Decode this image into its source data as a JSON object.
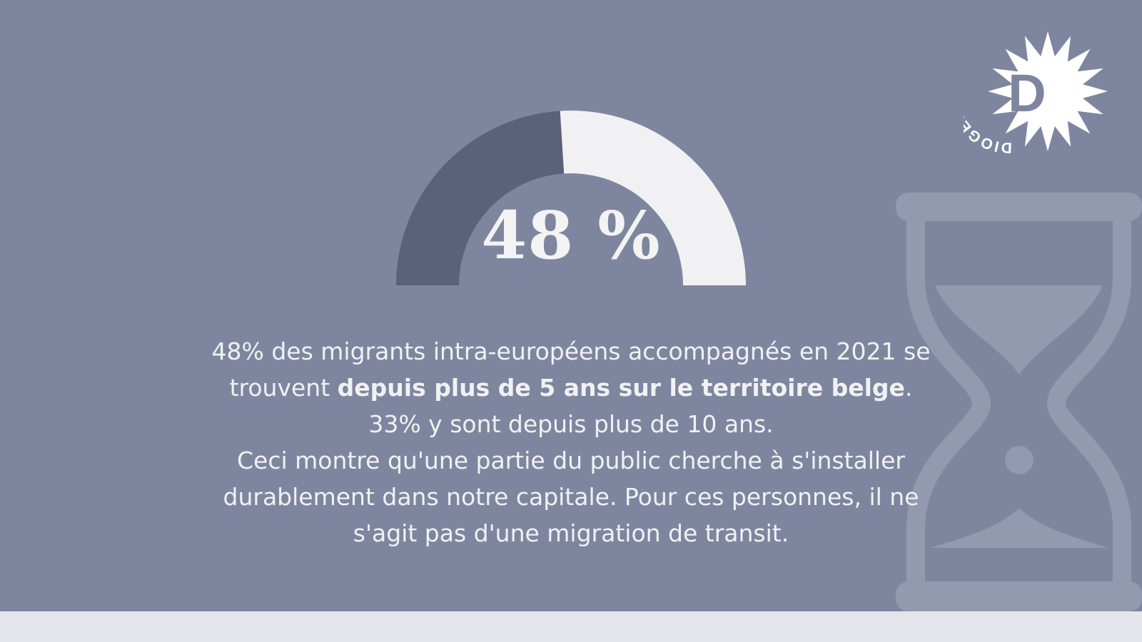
{
  "brand": {
    "logo_text": "DIOGENES",
    "logo_letter": "D"
  },
  "chart_data": {
    "type": "gauge",
    "value": 48,
    "max": 100,
    "label": "48 %"
  },
  "caption": {
    "line1": "48% des migrants intra-européens accompagnés en 2021 se",
    "line2_pre": "trouvent ",
    "line2_bold": "depuis plus de 5 ans sur le territoire belge",
    "line2_post": ".",
    "line3": "33% y sont depuis plus de 10 ans.",
    "line4": "Ceci montre qu'une partie du public cherche à s'installer",
    "line5": "durablement dans notre capitale. Pour ces personnes, il ne",
    "line6": "s'agit pas d'une migration de transit."
  },
  "decor": {
    "background_icon": "hourglass-icon"
  },
  "colors": {
    "background": "#7e869f",
    "gauge_filled": "#5a6179",
    "gauge_rest": "#f1f1f3",
    "text": "#f1f1f3",
    "bottom_strip": "#e4e5ea"
  }
}
